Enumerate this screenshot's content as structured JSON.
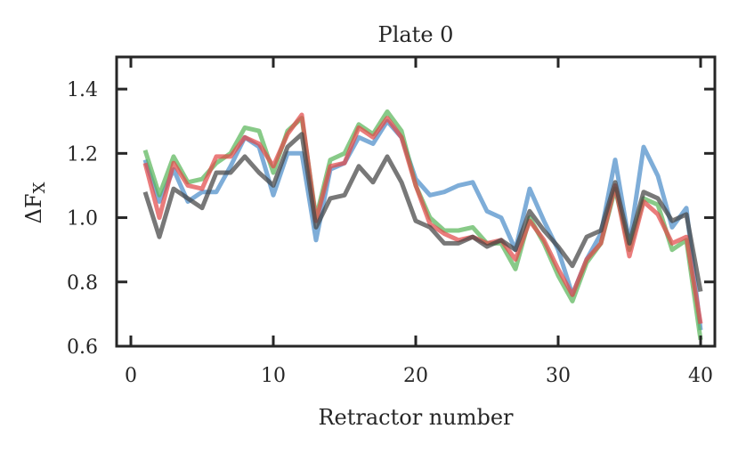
{
  "chart_data": {
    "type": "line",
    "title": "Plate 0",
    "xlabel": "Retractor number",
    "ylabel": "ΔF",
    "ylabel_subscript": "X",
    "xlim": [
      -1,
      41
    ],
    "ylim": [
      0.6,
      1.5
    ],
    "xticks": [
      0,
      10,
      20,
      30,
      40
    ],
    "xtick_labels": [
      "0",
      "10",
      "20",
      "30",
      "40"
    ],
    "yticks": [
      0.6,
      0.8,
      1.0,
      1.2,
      1.4
    ],
    "ytick_labels": [
      "0.6",
      "0.8",
      "1.0",
      "1.2",
      "1.4"
    ],
    "grid": false,
    "x": [
      1,
      2,
      3,
      4,
      5,
      6,
      7,
      8,
      9,
      10,
      11,
      12,
      13,
      14,
      15,
      16,
      17,
      18,
      19,
      20,
      21,
      22,
      23,
      24,
      25,
      26,
      27,
      28,
      29,
      30,
      31,
      32,
      33,
      34,
      35,
      36,
      37,
      38,
      39,
      40
    ],
    "series": [
      {
        "name": "blue",
        "color": "#4c8ec9",
        "values": [
          1.18,
          1.05,
          1.15,
          1.05,
          1.08,
          1.08,
          1.16,
          1.25,
          1.22,
          1.07,
          1.2,
          1.2,
          0.93,
          1.15,
          1.17,
          1.25,
          1.23,
          1.3,
          1.25,
          1.12,
          1.07,
          1.08,
          1.1,
          1.11,
          1.02,
          1.0,
          0.9,
          1.09,
          0.99,
          0.9,
          0.76,
          0.87,
          0.95,
          1.18,
          0.92,
          1.22,
          1.13,
          0.97,
          1.03,
          0.65
        ]
      },
      {
        "name": "green",
        "color": "#5ab55a",
        "values": [
          1.21,
          1.07,
          1.19,
          1.11,
          1.12,
          1.17,
          1.2,
          1.28,
          1.27,
          1.14,
          1.27,
          1.31,
          1.0,
          1.18,
          1.2,
          1.29,
          1.26,
          1.33,
          1.27,
          1.1,
          1.0,
          0.96,
          0.96,
          0.97,
          0.92,
          0.92,
          0.84,
          1.0,
          0.92,
          0.82,
          0.74,
          0.86,
          0.92,
          1.09,
          0.9,
          1.06,
          1.04,
          0.9,
          0.93,
          0.62
        ]
      },
      {
        "name": "red",
        "color": "#e24a4a",
        "values": [
          1.17,
          1.0,
          1.17,
          1.1,
          1.09,
          1.19,
          1.19,
          1.25,
          1.23,
          1.16,
          1.26,
          1.32,
          0.99,
          1.16,
          1.17,
          1.28,
          1.25,
          1.31,
          1.25,
          1.1,
          0.98,
          0.95,
          0.93,
          0.94,
          0.92,
          0.93,
          0.87,
          0.99,
          0.93,
          0.84,
          0.76,
          0.87,
          0.92,
          1.1,
          0.88,
          1.05,
          1.01,
          0.92,
          0.94,
          0.67
        ]
      },
      {
        "name": "black",
        "color": "#444444",
        "values": [
          1.08,
          0.94,
          1.09,
          1.06,
          1.03,
          1.14,
          1.14,
          1.19,
          1.14,
          1.1,
          1.22,
          1.26,
          0.97,
          1.06,
          1.07,
          1.16,
          1.11,
          1.19,
          1.11,
          0.99,
          0.97,
          0.92,
          0.92,
          0.94,
          0.91,
          0.93,
          0.9,
          1.02,
          0.96,
          0.91,
          0.85,
          0.94,
          0.96,
          1.11,
          0.92,
          1.08,
          1.06,
          0.99,
          1.01,
          0.77
        ]
      }
    ]
  }
}
